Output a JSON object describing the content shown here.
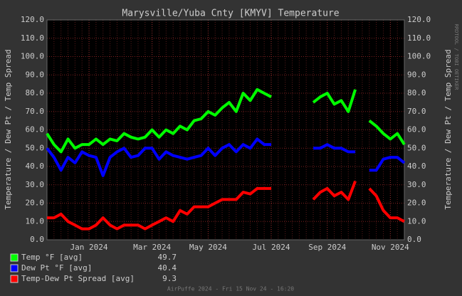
{
  "chart_data": {
    "type": "line",
    "title": "Marysville/Yuba Cnty [KMYV] Temperature",
    "y_label": "Temperature / Dew Pt / Temp Spread",
    "footer": "AirPuffe 2024 - Fri 15 Nov 24 - 16:20",
    "watermark": "RRDTOOL / TOBI OETIKER",
    "categories": [
      null,
      null,
      null,
      null,
      null,
      null,
      "Jan 2024",
      null,
      null,
      null,
      null,
      null,
      null,
      null,
      null,
      "Mar 2024",
      null,
      null,
      null,
      null,
      null,
      null,
      null,
      "May 2024",
      null,
      null,
      null,
      null,
      null,
      null,
      null,
      null,
      "Jul 2024",
      null,
      null,
      null,
      null,
      null,
      null,
      null,
      "Sep 2024",
      null,
      null,
      null,
      null,
      null,
      null,
      null,
      null,
      "Nov 2024",
      null,
      null
    ],
    "series": [
      {
        "name": "Temp °F [avg]",
        "avg": 49.7,
        "color": "#00ff00",
        "values": [
          58,
          52,
          48,
          55,
          50,
          52,
          52,
          55,
          52,
          55,
          54,
          58,
          56,
          55,
          56,
          60,
          56,
          60,
          58,
          62,
          60,
          65,
          66,
          70,
          68,
          72,
          75,
          70,
          80,
          76,
          82,
          80,
          78,
          null,
          null,
          null,
          null,
          null,
          75,
          78,
          80,
          74,
          76,
          70,
          82,
          null,
          65,
          62,
          58,
          55,
          58,
          52
        ]
      },
      {
        "name": "Dew Pt °F [avg]",
        "avg": 40.4,
        "color": "#0000ff",
        "values": [
          50,
          45,
          38,
          45,
          42,
          48,
          46,
          45,
          35,
          45,
          48,
          50,
          45,
          46,
          50,
          50,
          44,
          48,
          46,
          45,
          44,
          45,
          46,
          50,
          46,
          50,
          52,
          48,
          52,
          50,
          55,
          52,
          52,
          null,
          null,
          null,
          null,
          null,
          50,
          50,
          52,
          50,
          50,
          48,
          48,
          null,
          38,
          38,
          44,
          45,
          45,
          42
        ]
      },
      {
        "name": "Temp-Dew Pt Spread [avg]",
        "avg": 9.3,
        "color": "#ff0000",
        "values": [
          12,
          12,
          14,
          10,
          8,
          6,
          6,
          8,
          12,
          8,
          6,
          8,
          8,
          8,
          6,
          8,
          10,
          12,
          10,
          16,
          14,
          18,
          18,
          18,
          20,
          22,
          22,
          22,
          26,
          25,
          28,
          28,
          28,
          null,
          null,
          null,
          null,
          null,
          22,
          26,
          28,
          24,
          26,
          22,
          32,
          null,
          28,
          24,
          16,
          12,
          12,
          10
        ]
      }
    ],
    "ylim": [
      0,
      120
    ],
    "yticks": [
      {
        "value": 0,
        "label": "0.0"
      },
      {
        "value": 10,
        "label": "10.0"
      },
      {
        "value": 20,
        "label": "20.0"
      },
      {
        "value": 30,
        "label": "30.0"
      },
      {
        "value": 40,
        "label": "40.0"
      },
      {
        "value": 50,
        "label": "50.0"
      },
      {
        "value": 60,
        "label": "60.0"
      },
      {
        "value": 70,
        "label": "70.0"
      },
      {
        "value": 80,
        "label": "80.0"
      },
      {
        "value": 90,
        "label": "90.0"
      },
      {
        "value": 100,
        "label": "100.0"
      },
      {
        "value": 110,
        "label": "110.0"
      },
      {
        "value": 120,
        "label": "120.0"
      }
    ],
    "grid": true
  }
}
